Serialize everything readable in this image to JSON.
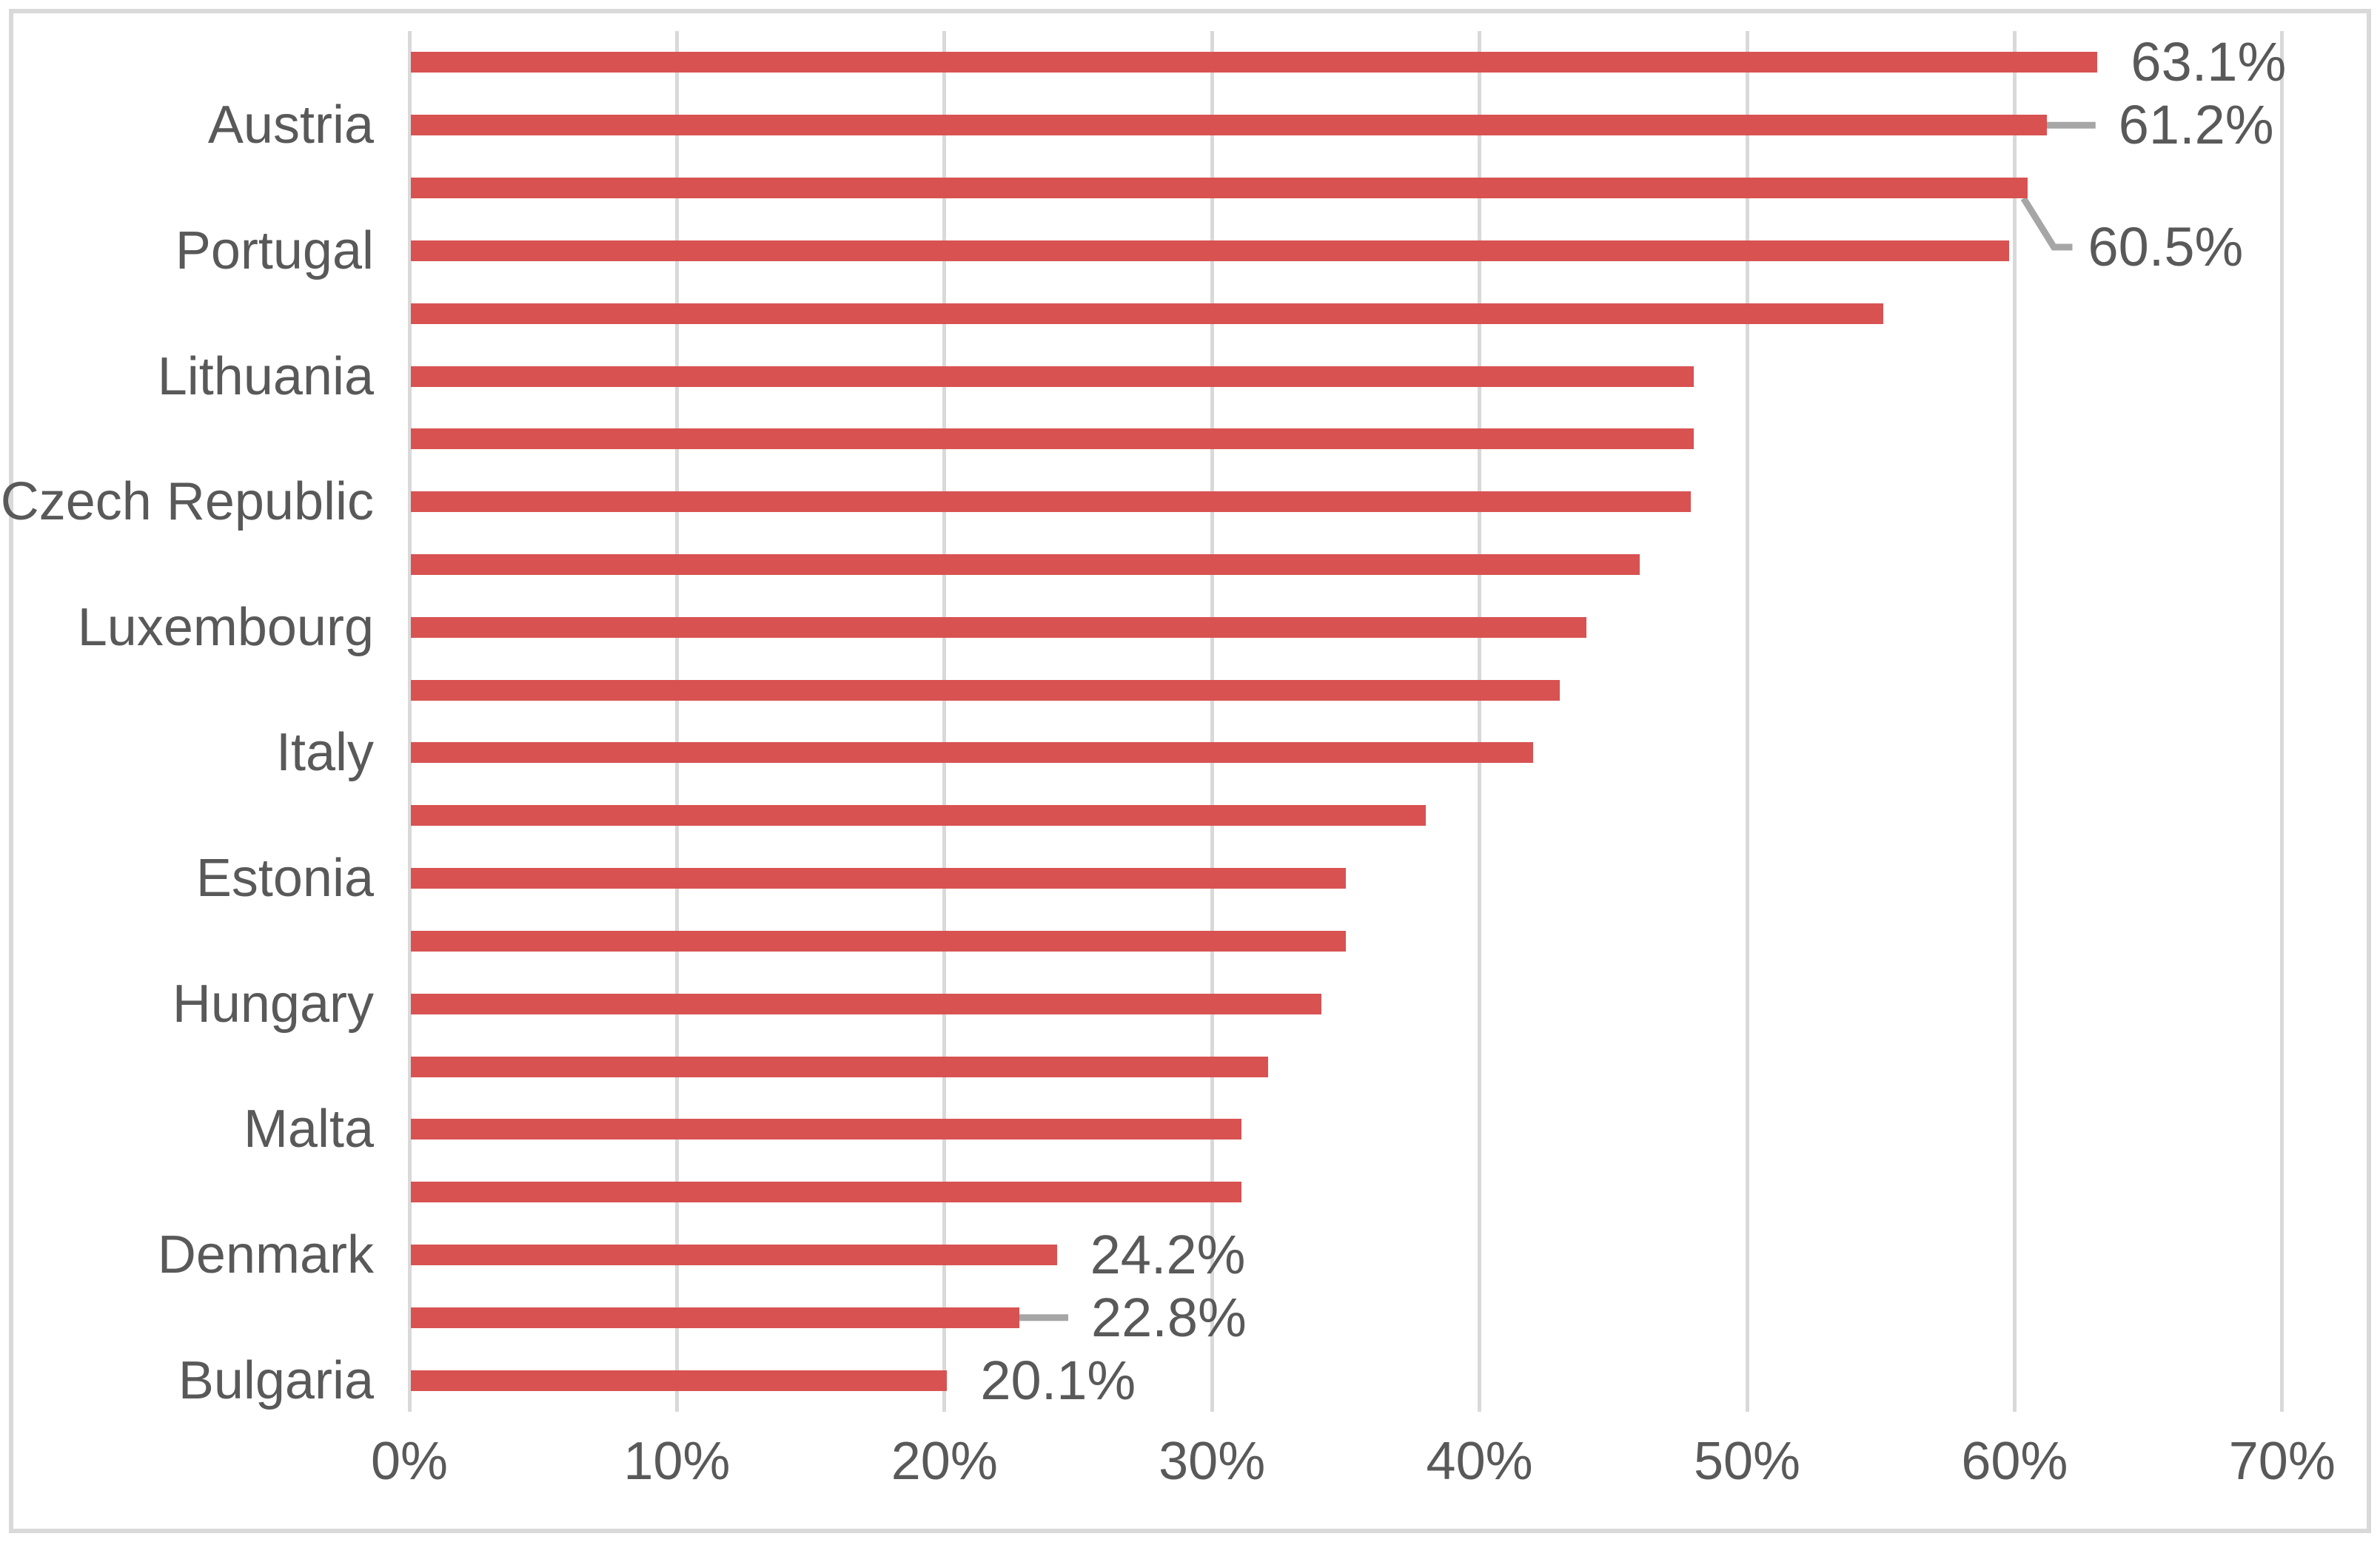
{
  "chart_data": {
    "type": "bar",
    "orientation": "horizontal",
    "title": "",
    "categories": [
      "",
      "Austria",
      "",
      "Portugal",
      "",
      "Lithuania",
      "",
      "Czech Republic",
      "",
      "Luxembourg",
      "",
      "Italy",
      "",
      "Estonia",
      "",
      "Hungary",
      "",
      "Malta",
      "",
      "Denmark",
      "",
      "Bulgaria"
    ],
    "values": [
      63.1,
      61.2,
      60.5,
      59.8,
      55.1,
      48.0,
      48.0,
      47.9,
      46.0,
      44.0,
      43.0,
      42.0,
      38.0,
      35.0,
      35.0,
      34.1,
      32.1,
      31.1,
      31.1,
      24.2,
      22.8,
      20.1
    ],
    "data_labels": [
      {
        "index": 0,
        "text": "63.1%",
        "leader": "none"
      },
      {
        "index": 1,
        "text": "61.2%",
        "leader": "straight"
      },
      {
        "index": 2,
        "text": "60.5%",
        "leader": "bent"
      },
      {
        "index": 19,
        "text": "24.2%",
        "leader": "none"
      },
      {
        "index": 20,
        "text": "22.8%",
        "leader": "straight"
      },
      {
        "index": 21,
        "text": "20.1%",
        "leader": "none"
      }
    ],
    "x_axis": {
      "ticks": [
        "0%",
        "10%",
        "20%",
        "30%",
        "40%",
        "50%",
        "60%",
        "70%"
      ],
      "tick_values": [
        0,
        10,
        20,
        30,
        40,
        50,
        60,
        70
      ],
      "min": 0,
      "max": 70,
      "grid": true
    },
    "legend": "none",
    "colors": {
      "bar": "#d85252",
      "gridline": "#d9d9d9",
      "border": "#d9d9d9",
      "text": "#595959",
      "leader": "#a6a6a6"
    }
  }
}
